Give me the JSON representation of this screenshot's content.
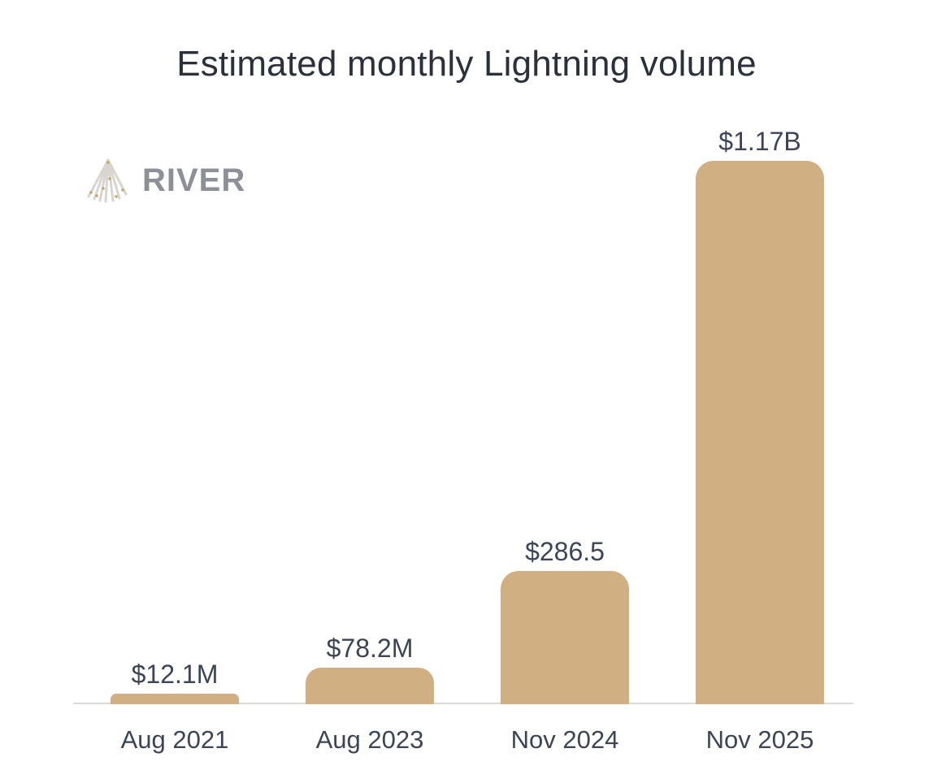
{
  "title": "Estimated monthly Lightning volume",
  "logo": {
    "brand": "RIVER"
  },
  "colors": {
    "background": "#ffffff",
    "bar": "#d0b083",
    "title": "#2b303b",
    "label": "#3d4457",
    "axis": "#dcdad6",
    "logo_text": "#8d9097",
    "logo_mark": "#d8d5d0",
    "logo_dot": "#c9a262"
  },
  "chart_data": {
    "type": "bar",
    "title": "Estimated monthly Lightning volume",
    "categories": [
      "Aug 2021",
      "Aug 2023",
      "Nov 2024",
      "Nov 2025"
    ],
    "values": [
      12.1,
      78.2,
      286.5,
      1170
    ],
    "value_unit": "USD millions",
    "value_labels": [
      "$12.1M",
      "$78.2M",
      "$286.5",
      "$1.17B"
    ],
    "xlabel": "",
    "ylabel": "",
    "grid": false,
    "legend": false,
    "y_axis_visible": false
  }
}
